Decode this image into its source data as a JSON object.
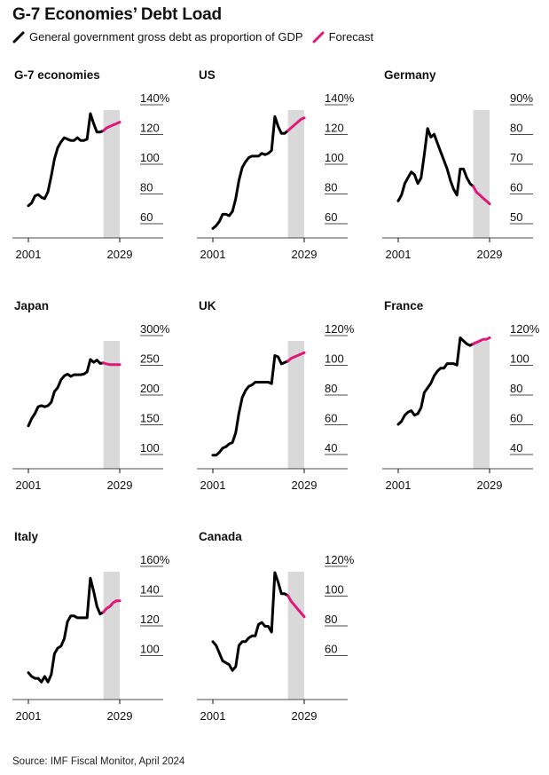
{
  "title": "G-7 Economies’ Debt Load",
  "legend": {
    "actual_label": "General government gross debt as proportion of GDP",
    "forecast_label": "Forecast",
    "actual_color": "#000000",
    "forecast_color": "#e0177a",
    "shade_color": "#d9d9d9"
  },
  "source": "Source: IMF Fiscal Monitor, April 2024",
  "chart_data": [
    {
      "type": "line",
      "title": "G-7 economies",
      "x_ticks": [
        "2001",
        "2029"
      ],
      "xlim": [
        2001,
        2029
      ],
      "forecast_start": 2024,
      "y_ticks": [
        "140%",
        "120",
        "100",
        "80",
        "60"
      ],
      "ylim": [
        52,
        144
      ],
      "series": [
        {
          "name": "actual",
          "x": [
            2001,
            2002,
            2003,
            2004,
            2005,
            2006,
            2007,
            2008,
            2009,
            2010,
            2011,
            2012,
            2013,
            2014,
            2015,
            2016,
            2017,
            2018,
            2019,
            2020,
            2021,
            2022,
            2023,
            2024
          ],
          "values": [
            69,
            71,
            76,
            77,
            75,
            74,
            79,
            90,
            102,
            110,
            114,
            117,
            116,
            115,
            115,
            117,
            115,
            115,
            116,
            134,
            127,
            121,
            121,
            122
          ]
        },
        {
          "name": "Forecast",
          "x": [
            2024,
            2025,
            2026,
            2027,
            2028,
            2029
          ],
          "values": [
            122,
            124,
            125,
            126,
            127,
            128
          ]
        }
      ]
    },
    {
      "type": "line",
      "title": "US",
      "x_ticks": [
        "2001",
        "2029"
      ],
      "xlim": [
        2001,
        2029
      ],
      "forecast_start": 2024,
      "y_ticks": [
        "140%",
        "120",
        "100",
        "80",
        "60"
      ],
      "ylim": [
        52,
        144
      ],
      "series": [
        {
          "name": "actual",
          "x": [
            2001,
            2002,
            2003,
            2004,
            2005,
            2006,
            2007,
            2008,
            2009,
            2010,
            2011,
            2012,
            2013,
            2014,
            2015,
            2016,
            2017,
            2018,
            2019,
            2020,
            2021,
            2022,
            2023,
            2024
          ],
          "values": [
            53,
            55,
            58,
            63,
            63,
            62,
            65,
            74,
            87,
            96,
            100,
            103,
            104,
            104,
            104,
            106,
            105,
            106,
            108,
            132,
            125,
            120,
            120,
            122
          ]
        },
        {
          "name": "Forecast",
          "x": [
            2024,
            2025,
            2026,
            2027,
            2028,
            2029
          ],
          "values": [
            122,
            124,
            126,
            128,
            130,
            131
          ]
        }
      ]
    },
    {
      "type": "line",
      "title": "Germany",
      "x_ticks": [
        "2001",
        "2029"
      ],
      "xlim": [
        2001,
        2029
      ],
      "forecast_start": 2024,
      "y_ticks": [
        "90%",
        "80",
        "70",
        "60",
        "50"
      ],
      "ylim": [
        47,
        92
      ],
      "series": [
        {
          "name": "actual",
          "x": [
            2001,
            2002,
            2003,
            2004,
            2005,
            2006,
            2007,
            2008,
            2009,
            2010,
            2011,
            2012,
            2013,
            2014,
            2015,
            2016,
            2017,
            2018,
            2019,
            2020,
            2021,
            2022,
            2023,
            2024
          ],
          "values": [
            57,
            59,
            63,
            65,
            67,
            66,
            63,
            65,
            73,
            82,
            79,
            80,
            77,
            74,
            71,
            68,
            64,
            61,
            59,
            68,
            68,
            65,
            63,
            62
          ]
        },
        {
          "name": "Forecast",
          "x": [
            2024,
            2025,
            2026,
            2027,
            2028,
            2029
          ],
          "values": [
            62,
            60,
            59,
            58,
            57,
            56
          ]
        }
      ]
    },
    {
      "type": "line",
      "title": "Japan",
      "x_ticks": [
        "2001",
        "2029"
      ],
      "xlim": [
        2001,
        2029
      ],
      "forecast_start": 2024,
      "y_ticks": [
        "300%",
        "250",
        "200",
        "150",
        "100"
      ],
      "ylim": [
        78,
        310
      ],
      "series": [
        {
          "name": "actual",
          "x": [
            2001,
            2002,
            2003,
            2004,
            2005,
            2006,
            2007,
            2008,
            2009,
            2010,
            2011,
            2012,
            2013,
            2014,
            2015,
            2016,
            2017,
            2018,
            2019,
            2020,
            2021,
            2022,
            2023,
            2024
          ],
          "values": [
            140,
            153,
            162,
            174,
            176,
            174,
            176,
            182,
            201,
            208,
            222,
            229,
            232,
            228,
            231,
            231,
            231,
            232,
            236,
            258,
            253,
            257,
            251,
            252
          ]
        },
        {
          "name": "Forecast",
          "x": [
            2024,
            2025,
            2026,
            2027,
            2028,
            2029
          ],
          "values": [
            252,
            250,
            249,
            249,
            249,
            249
          ]
        }
      ]
    },
    {
      "type": "line",
      "title": "UK",
      "x_ticks": [
        "2001",
        "2029"
      ],
      "xlim": [
        2001,
        2029
      ],
      "forecast_start": 2024,
      "y_ticks": [
        "120%",
        "100",
        "80",
        "60",
        "40"
      ],
      "ylim": [
        30,
        123
      ],
      "series": [
        {
          "name": "actual",
          "x": [
            2001,
            2002,
            2003,
            2004,
            2005,
            2006,
            2007,
            2008,
            2009,
            2010,
            2011,
            2012,
            2013,
            2014,
            2015,
            2016,
            2017,
            2018,
            2019,
            2020,
            2021,
            2022,
            2023,
            2024
          ],
          "values": [
            34,
            34,
            36,
            39,
            40,
            42,
            43,
            50,
            64,
            75,
            80,
            83,
            84,
            86,
            86,
            86,
            86,
            86,
            85,
            105,
            104,
            99,
            100,
            101
          ]
        },
        {
          "name": "Forecast",
          "x": [
            2024,
            2025,
            2026,
            2027,
            2028,
            2029
          ],
          "values": [
            101,
            103,
            104,
            105,
            106,
            107
          ]
        }
      ]
    },
    {
      "type": "line",
      "title": "France",
      "x_ticks": [
        "2001",
        "2029"
      ],
      "xlim": [
        2001,
        2029
      ],
      "forecast_start": 2024,
      "y_ticks": [
        "120%",
        "100",
        "80",
        "60",
        "40"
      ],
      "ylim": [
        34,
        120
      ],
      "series": [
        {
          "name": "actual",
          "x": [
            2001,
            2002,
            2003,
            2004,
            2005,
            2006,
            2007,
            2008,
            2009,
            2010,
            2011,
            2012,
            2013,
            2014,
            2015,
            2016,
            2017,
            2018,
            2019,
            2020,
            2021,
            2022,
            2023,
            2024
          ],
          "values": [
            58,
            60,
            64,
            66,
            67,
            64,
            65,
            69,
            79,
            82,
            85,
            90,
            93,
            95,
            95,
            98,
            98,
            98,
            97,
            115,
            113,
            111,
            110,
            111
          ]
        },
        {
          "name": "Forecast",
          "x": [
            2024,
            2025,
            2026,
            2027,
            2028,
            2029
          ],
          "values": [
            111,
            112,
            113,
            114,
            114,
            115
          ]
        }
      ]
    },
    {
      "type": "line",
      "title": "Italy",
      "x_ticks": [
        "2001",
        "2029"
      ],
      "xlim": [
        2001,
        2029
      ],
      "forecast_start": 2024,
      "y_ticks": [
        "160%",
        "140",
        "120",
        "100"
      ],
      "ylim": [
        95,
        164
      ],
      "series": [
        {
          "name": "actual",
          "x": [
            2001,
            2002,
            2003,
            2004,
            2005,
            2006,
            2007,
            2008,
            2009,
            2010,
            2011,
            2012,
            2013,
            2014,
            2015,
            2016,
            2017,
            2018,
            2019,
            2020,
            2021,
            2022,
            2023,
            2024
          ],
          "values": [
            105,
            103,
            102,
            102,
            100,
            103,
            100,
            104,
            115,
            118,
            119,
            123,
            132,
            135,
            135,
            134,
            134,
            134,
            134,
            155,
            148,
            140,
            136,
            137
          ]
        },
        {
          "name": "Forecast",
          "x": [
            2024,
            2025,
            2026,
            2027,
            2028,
            2029
          ],
          "values": [
            137,
            139,
            140,
            142,
            143,
            143
          ]
        }
      ]
    },
    {
      "type": "line",
      "title": "Canada",
      "x_ticks": [
        "2001",
        "2029"
      ],
      "xlim": [
        2001,
        2029
      ],
      "forecast_start": 2024,
      "y_ticks": [
        "120%",
        "100",
        "80",
        "60"
      ],
      "ylim": [
        56,
        124
      ],
      "series": [
        {
          "name": "actual",
          "x": [
            2001,
            2002,
            2003,
            2004,
            2005,
            2006,
            2007,
            2008,
            2009,
            2010,
            2011,
            2012,
            2013,
            2014,
            2015,
            2016,
            2017,
            2018,
            2019,
            2020,
            2021,
            2022,
            2023,
            2024
          ],
          "values": [
            82,
            80,
            76,
            72,
            71,
            70,
            67,
            69,
            80,
            82,
            82,
            84,
            85,
            85,
            91,
            92,
            90,
            90,
            87,
            118,
            113,
            107,
            107,
            106
          ]
        },
        {
          "name": "Forecast",
          "x": [
            2024,
            2025,
            2026,
            2027,
            2028,
            2029
          ],
          "values": [
            106,
            103,
            101,
            99,
            97,
            95
          ]
        }
      ]
    }
  ]
}
